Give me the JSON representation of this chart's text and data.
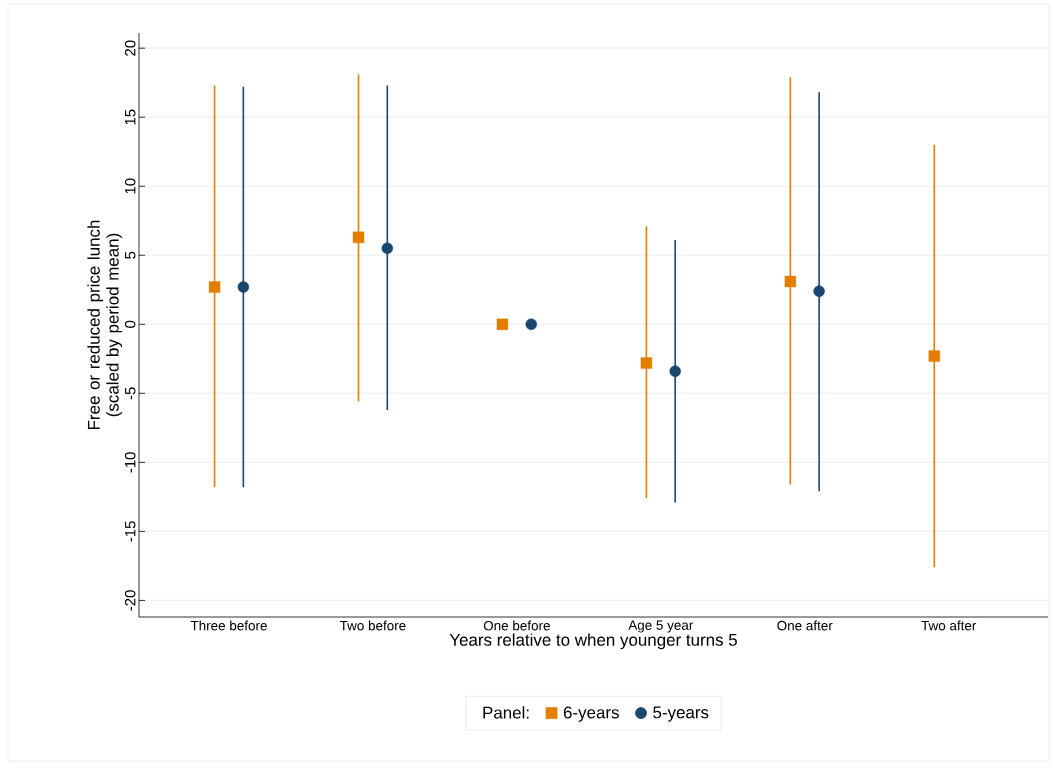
{
  "chart_data": {
    "type": "scatter",
    "xlabel": "Years relative to when younger turns 5",
    "ylabel": "Free or reduced price lunch (scaled by period mean)",
    "categories": [
      "Three before",
      "Two before",
      "One before",
      "Age 5 year",
      "One after",
      "Two after"
    ],
    "series": [
      {
        "name": "6-years",
        "color": "#e37e00",
        "marker": "square",
        "values": [
          2.7,
          6.3,
          0,
          -2.8,
          3.1,
          -2.3
        ],
        "errors": [
          [
            -11.8,
            17.3
          ],
          [
            -5.6,
            18.1
          ],
          null,
          [
            -12.6,
            7.1
          ],
          [
            -11.6,
            17.9
          ],
          [
            -17.6,
            13.0
          ]
        ]
      },
      {
        "name": "5-years",
        "color": "#1a476f",
        "marker": "circle",
        "values": [
          2.7,
          5.5,
          0,
          -3.4,
          2.4,
          null
        ],
        "errors": [
          [
            -11.8,
            17.2
          ],
          [
            -6.2,
            17.3
          ],
          null,
          [
            -12.9,
            6.1
          ],
          [
            -12.1,
            16.8
          ],
          null
        ]
      }
    ],
    "ylim": [
      -21.2,
      21.1
    ],
    "yticks": [
      -20,
      -15,
      -10,
      -5,
      0,
      5,
      10,
      15,
      20
    ],
    "grid": "y",
    "legend": "bottom",
    "legend_title": "Panel:"
  }
}
